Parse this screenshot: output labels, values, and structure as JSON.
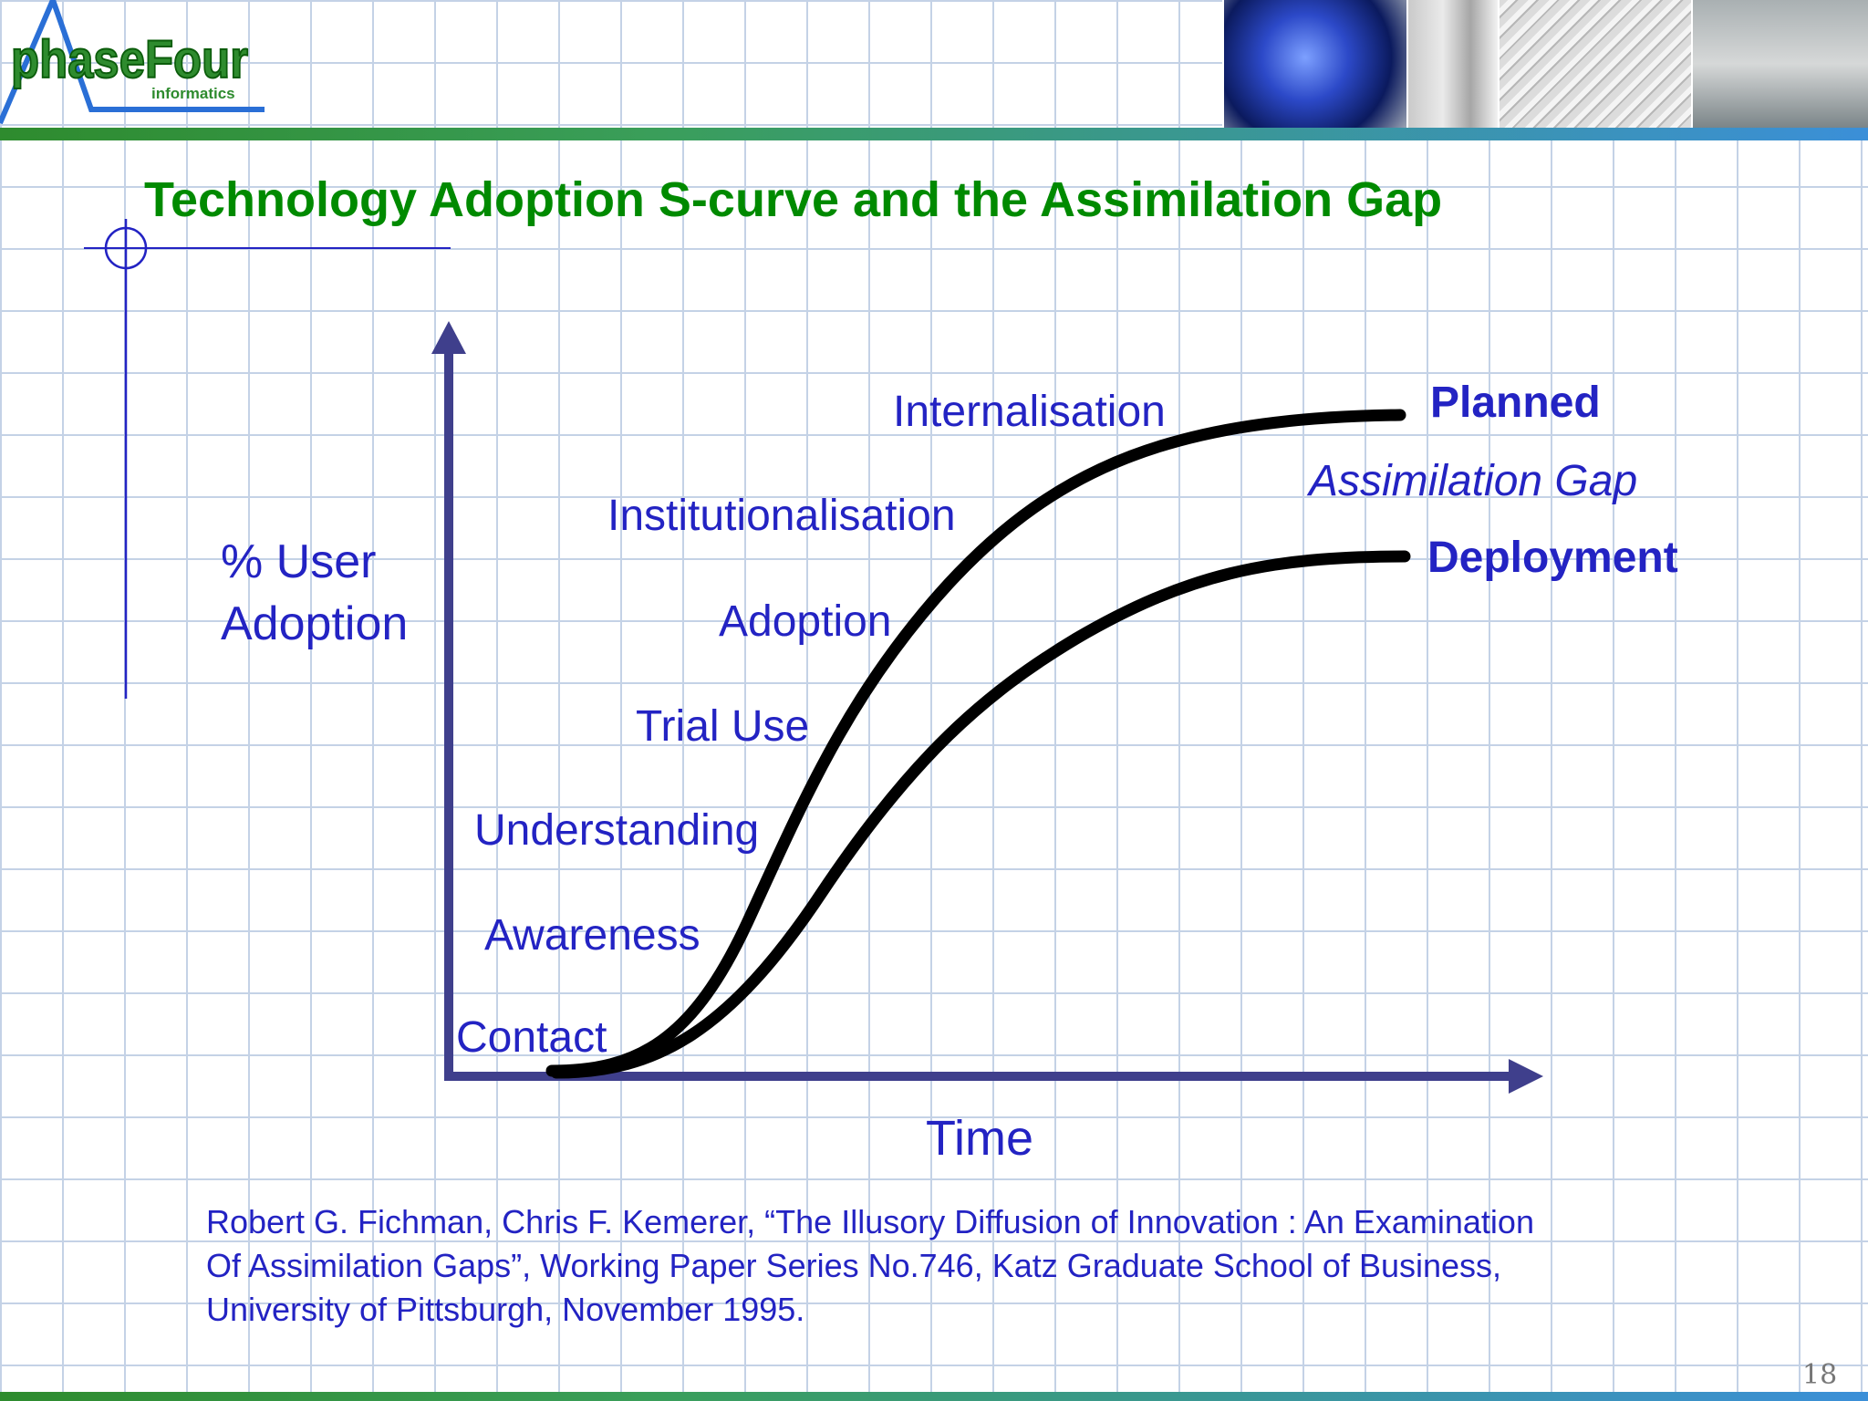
{
  "logo": {
    "brand": "phaseFour",
    "tagline": "informatics"
  },
  "title": "Technology Adoption S-curve and the Assimilation Gap",
  "axes": {
    "y_label_line1": "% User",
    "y_label_line2": "Adoption",
    "x_label": "Time"
  },
  "stages": [
    "Contact",
    "Awareness",
    "Understanding",
    "Trial Use",
    "Adoption",
    "Institutionalisation",
    "Internalisation"
  ],
  "curves": {
    "planned_label": "Planned",
    "deployment_label": "Deployment",
    "gap_label": "Assimilation Gap"
  },
  "citation": {
    "line1": "Robert G. Fichman, Chris F. Kemerer, “The Illusory Diffusion of Innovation : An Examination",
    "line2": "Of Assimilation Gaps”, Working Paper Series No.746, Katz Graduate School of Business,",
    "line3": "University of Pittsburgh, November 1995."
  },
  "page_number": "18",
  "colors": {
    "title": "#008a00",
    "text": "#2323c3",
    "axis": "#3f3f8c",
    "curve": "#000000",
    "grid": "#c4d2e6"
  }
}
